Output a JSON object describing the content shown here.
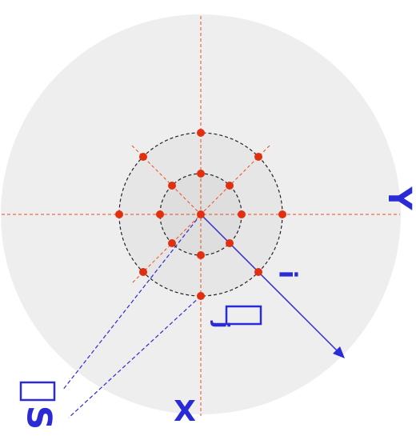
{
  "diagram": {
    "labels": {
      "x_axis": "X",
      "y_axis": "Y",
      "s_label": "S",
      "i_label": "i",
      "j_label": "j"
    },
    "colors": {
      "background_disk": "#eeeeee",
      "inner_disk": "#e2e2e2",
      "guide_lines": "#f04a1a",
      "nodes": "#e03010",
      "circles": "#222222",
      "annotations": "#2b2bd6"
    },
    "node_counts": {
      "center": 1,
      "inner_ring": 8,
      "outer_ring": 8
    }
  }
}
